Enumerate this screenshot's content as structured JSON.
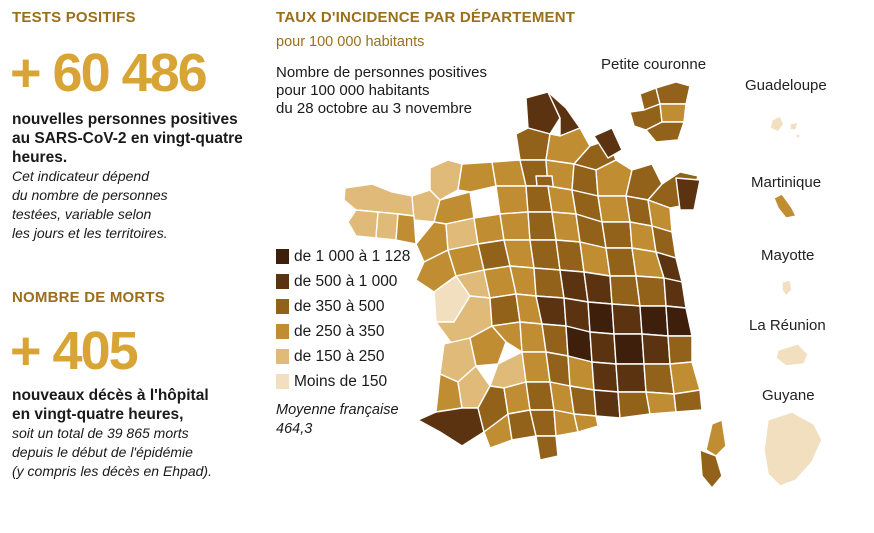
{
  "left": {
    "tests_header": "TESTS POSITIFS",
    "tests_value": "+ 60 486",
    "tests_bold": [
      "nouvelles personnes positives",
      "au SARS-CoV-2 en vingt-quatre",
      "heures."
    ],
    "tests_italic": [
      "Cet indicateur dépend",
      "du nombre de personnes",
      "testées, variable selon",
      "les jours et les territoires."
    ],
    "deaths_header": "NOMBRE DE MORTS",
    "deaths_value": "+ 405",
    "deaths_bold": [
      "nouveaux décès à l'hôpital",
      "en vingt-quatre heures,"
    ],
    "deaths_italic": [
      "soit un total de 39 865 morts",
      "depuis le début de l'épidémie",
      "(y compris les décès en Ehpad)."
    ]
  },
  "map": {
    "title": "TAUX D'INCIDENCE PAR DÉPARTEMENT",
    "subtitle": "pour 100 000 habitants",
    "description": [
      "Nombre de personnes positives",
      "pour 100 000 habitants",
      "du 28 octobre au 3 novembre"
    ],
    "average_label": "Moyenne française",
    "average_value": "464,3",
    "petite_couronne_label": "Petite couronne",
    "legend": [
      {
        "label": "de 1 000 à 1 128",
        "color": "#3d1f0c"
      },
      {
        "label": "de 500 à 1 000",
        "color": "#5c3310"
      },
      {
        "label": "de 350 à 500",
        "color": "#93621a"
      },
      {
        "label": "de 250 à 350",
        "color": "#c08d33"
      },
      {
        "label": "de 150 à 250",
        "color": "#dfba78"
      },
      {
        "label": "Moins de 150",
        "color": "#f1dfc0"
      }
    ],
    "overseas": [
      "Guadeloupe",
      "Martinique",
      "Mayotte",
      "La Réunion",
      "Guyane"
    ]
  },
  "colors": {
    "accent": "#d9a436",
    "header": "#9a6e1c"
  }
}
